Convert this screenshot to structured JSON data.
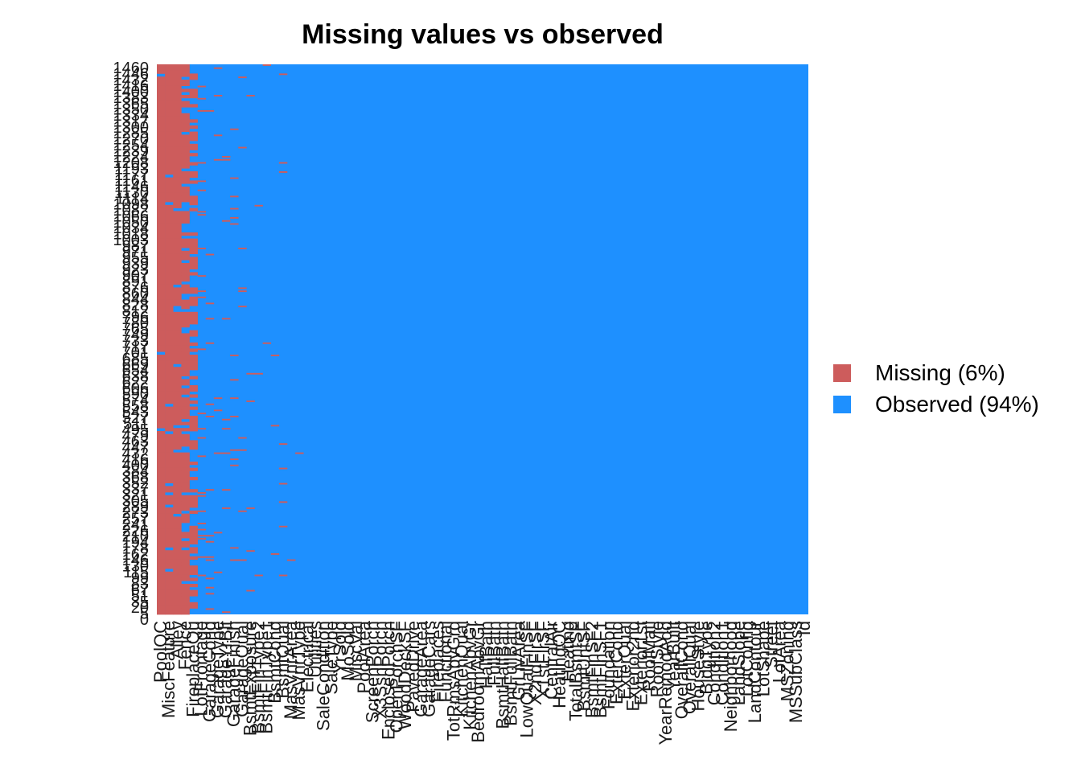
{
  "chart_data": {
    "type": "heatmap",
    "title": "Missing values vs observed",
    "xlabel": "",
    "ylabel": "",
    "legend_position": "right",
    "legend": [
      {
        "label": "Missing (6%)",
        "color": "#CD5C5C",
        "key": "missing"
      },
      {
        "label": "Observed (94%)",
        "color": "#1E90FF",
        "key": "observed"
      }
    ],
    "n_rows": 1460,
    "ytick_labels": [
      "1460",
      "1446",
      "1432",
      "1416",
      "1400",
      "1383",
      "1365",
      "1350",
      "1334",
      "1317",
      "1300",
      "1285",
      "1270",
      "1254",
      "1239",
      "1224",
      "1208",
      "1193",
      "1177",
      "1161",
      "1146",
      "1130",
      "1114",
      "1098",
      "1082",
      "1066",
      "1050",
      "1034",
      "1018",
      "1003",
      "987",
      "971",
      "955",
      "939",
      "923",
      "907",
      "891",
      "876",
      "860",
      "844",
      "828",
      "812",
      "796",
      "780",
      "765",
      "749",
      "733",
      "717",
      "701",
      "685",
      "669",
      "654",
      "638",
      "622",
      "606",
      "590",
      "574",
      "558",
      "543",
      "527",
      "511",
      "495",
      "479",
      "463",
      "447",
      "432",
      "416",
      "400",
      "384",
      "368",
      "352",
      "337",
      "321",
      "305",
      "289",
      "273",
      "257",
      "241",
      "226",
      "210",
      "194",
      "178",
      "162",
      "146",
      "130",
      "115",
      "99",
      "83",
      "67",
      "51",
      "35",
      "20",
      "5",
      "0"
    ],
    "columns": [
      {
        "name": "PoolQC",
        "missing_pct": 99.5
      },
      {
        "name": "MiscFeature",
        "missing_pct": 96.3
      },
      {
        "name": "Alley",
        "missing_pct": 93.8
      },
      {
        "name": "Fence",
        "missing_pct": 80.8
      },
      {
        "name": "FireplaceQu",
        "missing_pct": 47.3
      },
      {
        "name": "LotFrontage",
        "missing_pct": 17.7
      },
      {
        "name": "GarageCond",
        "missing_pct": 5.5
      },
      {
        "name": "GarageType",
        "missing_pct": 5.5
      },
      {
        "name": "GarageYrBlt",
        "missing_pct": 5.5
      },
      {
        "name": "GarageFinish",
        "missing_pct": 5.5
      },
      {
        "name": "GarageQual",
        "missing_pct": 5.5
      },
      {
        "name": "BsmtExposure",
        "missing_pct": 2.6
      },
      {
        "name": "BsmtFinType2",
        "missing_pct": 2.6
      },
      {
        "name": "BsmtFinType1",
        "missing_pct": 2.5
      },
      {
        "name": "BsmtCond",
        "missing_pct": 2.5
      },
      {
        "name": "BsmtQual",
        "missing_pct": 2.5
      },
      {
        "name": "MasVnrArea",
        "missing_pct": 0.5
      },
      {
        "name": "MasVnrType",
        "missing_pct": 0.5
      },
      {
        "name": "Electrical",
        "missing_pct": 0.1
      },
      {
        "name": "Utilities",
        "missing_pct": 0
      },
      {
        "name": "SaleCondition",
        "missing_pct": 0
      },
      {
        "name": "SaleType",
        "missing_pct": 0
      },
      {
        "name": "YrSold",
        "missing_pct": 0
      },
      {
        "name": "MoSold",
        "missing_pct": 0
      },
      {
        "name": "MiscVal",
        "missing_pct": 0
      },
      {
        "name": "PoolArea",
        "missing_pct": 0
      },
      {
        "name": "ScreenPorch",
        "missing_pct": 0
      },
      {
        "name": "X3SsnPorch",
        "missing_pct": 0
      },
      {
        "name": "EnclosedPorch",
        "missing_pct": 0
      },
      {
        "name": "OpenPorchSF",
        "missing_pct": 0
      },
      {
        "name": "WoodDeckSF",
        "missing_pct": 0
      },
      {
        "name": "PavedDrive",
        "missing_pct": 0
      },
      {
        "name": "GarageArea",
        "missing_pct": 0
      },
      {
        "name": "GarageCars",
        "missing_pct": 0
      },
      {
        "name": "Fireplaces",
        "missing_pct": 0
      },
      {
        "name": "Functional",
        "missing_pct": 0
      },
      {
        "name": "TotRmsAbvGrd",
        "missing_pct": 0
      },
      {
        "name": "KitchenQual",
        "missing_pct": 0
      },
      {
        "name": "KitchenAbvGr",
        "missing_pct": 0
      },
      {
        "name": "BedroomAbvGr",
        "missing_pct": 0
      },
      {
        "name": "HalfBath",
        "missing_pct": 0
      },
      {
        "name": "FullBath",
        "missing_pct": 0
      },
      {
        "name": "BsmtHalfBath",
        "missing_pct": 0
      },
      {
        "name": "BsmtFullBath",
        "missing_pct": 0
      },
      {
        "name": "GrLivArea",
        "missing_pct": 0
      },
      {
        "name": "LowQualFinSF",
        "missing_pct": 0
      },
      {
        "name": "X2ndFlrSF",
        "missing_pct": 0
      },
      {
        "name": "X1stFlrSF",
        "missing_pct": 0
      },
      {
        "name": "CentralAir",
        "missing_pct": 0
      },
      {
        "name": "HeatingQC",
        "missing_pct": 0
      },
      {
        "name": "Heating",
        "missing_pct": 0
      },
      {
        "name": "TotalBsmtSF",
        "missing_pct": 0
      },
      {
        "name": "BsmtUnfSF",
        "missing_pct": 0
      },
      {
        "name": "BsmtFinSF2",
        "missing_pct": 0
      },
      {
        "name": "BsmtFinSF1",
        "missing_pct": 0
      },
      {
        "name": "Foundation",
        "missing_pct": 0
      },
      {
        "name": "ExterCond",
        "missing_pct": 0
      },
      {
        "name": "ExterQual",
        "missing_pct": 0
      },
      {
        "name": "Exterior2nd",
        "missing_pct": 0
      },
      {
        "name": "Exterior1st",
        "missing_pct": 0
      },
      {
        "name": "RoofMatl",
        "missing_pct": 0
      },
      {
        "name": "RoofStyle",
        "missing_pct": 0
      },
      {
        "name": "YearRemodAdd",
        "missing_pct": 0
      },
      {
        "name": "YearBuilt",
        "missing_pct": 0
      },
      {
        "name": "OverallCond",
        "missing_pct": 0
      },
      {
        "name": "OverallQual",
        "missing_pct": 0
      },
      {
        "name": "HouseStyle",
        "missing_pct": 0
      },
      {
        "name": "BldgType",
        "missing_pct": 0
      },
      {
        "name": "Condition2",
        "missing_pct": 0
      },
      {
        "name": "Condition1",
        "missing_pct": 0
      },
      {
        "name": "Neighborhood",
        "missing_pct": 0
      },
      {
        "name": "LandSlope",
        "missing_pct": 0
      },
      {
        "name": "LotConfig",
        "missing_pct": 0
      },
      {
        "name": "LandContour",
        "missing_pct": 0
      },
      {
        "name": "LotShape",
        "missing_pct": 0
      },
      {
        "name": "Street",
        "missing_pct": 0
      },
      {
        "name": "LotArea",
        "missing_pct": 0
      },
      {
        "name": "MSZoning",
        "missing_pct": 0
      },
      {
        "name": "MSSubClass",
        "missing_pct": 0
      },
      {
        "name": "Id",
        "missing_pct": 0
      }
    ]
  }
}
